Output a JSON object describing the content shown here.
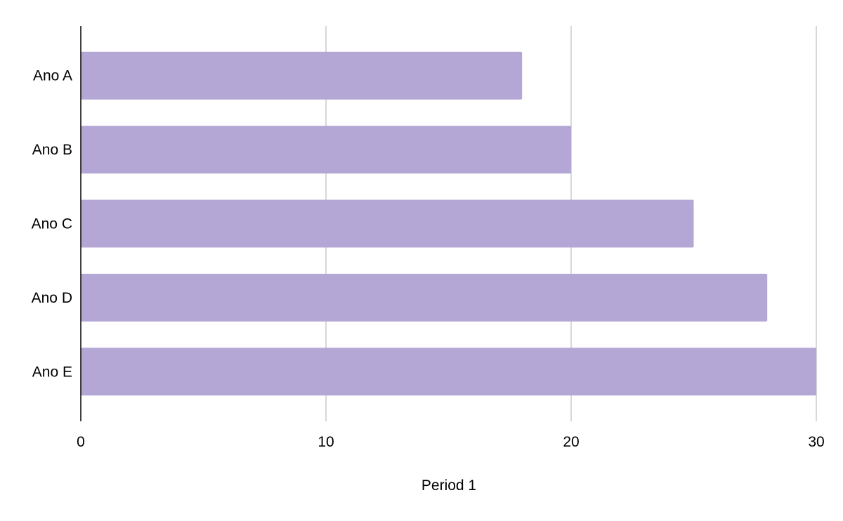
{
  "chart_data": {
    "type": "bar",
    "orientation": "horizontal",
    "title": "",
    "xlabel": "Period 1",
    "ylabel": "",
    "categories": [
      "Ano A",
      "Ano B",
      "Ano C",
      "Ano D",
      "Ano E"
    ],
    "values": [
      18,
      20,
      25,
      28,
      30
    ],
    "xlim": [
      0,
      30
    ],
    "x_ticks": [
      0,
      10,
      20,
      30
    ],
    "grid": "vertical",
    "legend": "none",
    "colors": {
      "bar": "#b4a7d6",
      "grid": "#cccccc",
      "axis": "#000000",
      "text": "#000000"
    }
  }
}
